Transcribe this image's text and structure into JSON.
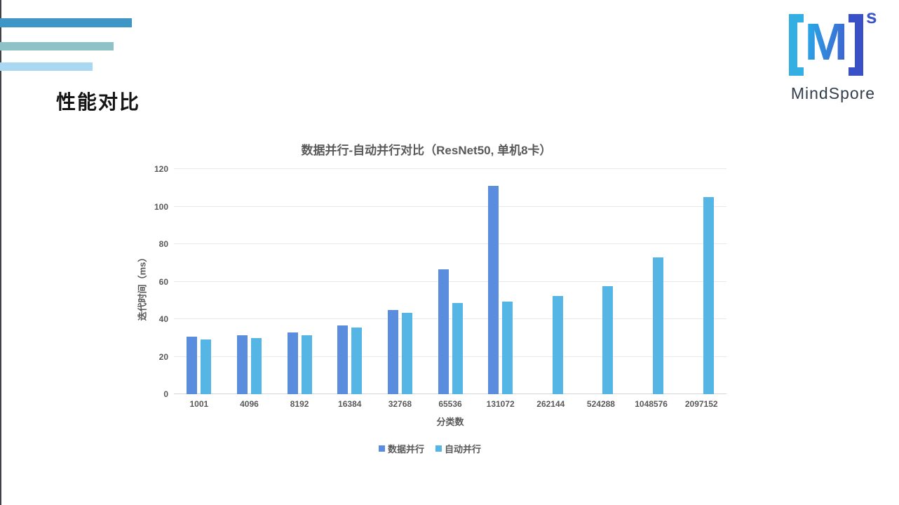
{
  "slide": {
    "title": "性能对比",
    "logo": {
      "letter": "M",
      "superscript": "s",
      "wordmark": "MindSpore",
      "bracket_left_color": "#34afe4",
      "bracket_right_color": "#3a50c6"
    },
    "decorative_bar_colors": [
      "#3e96c6",
      "#8fc2c6",
      "#aad7f2"
    ]
  },
  "chart_data": {
    "type": "bar",
    "title": "数据并行-自动并行对比（ResNet50, 单机8卡）",
    "xlabel": "分类数",
    "ylabel": "迭代时间（ms）",
    "categories": [
      "1001",
      "4096",
      "8192",
      "16384",
      "32768",
      "65536",
      "131072",
      "262144",
      "524288",
      "1048576",
      "2097152"
    ],
    "series": [
      {
        "name": "数据并行",
        "color": "#5a8dde",
        "values": [
          30.5,
          31.5,
          33,
          36.5,
          45,
          66.5,
          111,
          null,
          null,
          null,
          null
        ]
      },
      {
        "name": "自动并行",
        "color": "#55b5e5",
        "values": [
          29,
          30,
          31.5,
          35.5,
          43.5,
          48.5,
          49.5,
          52.5,
          57.5,
          73,
          105
        ]
      }
    ],
    "ylim": [
      0,
      120
    ],
    "yticks": [
      0,
      20,
      40,
      60,
      80,
      100,
      120
    ],
    "grid": true,
    "legend_position": "bottom"
  }
}
